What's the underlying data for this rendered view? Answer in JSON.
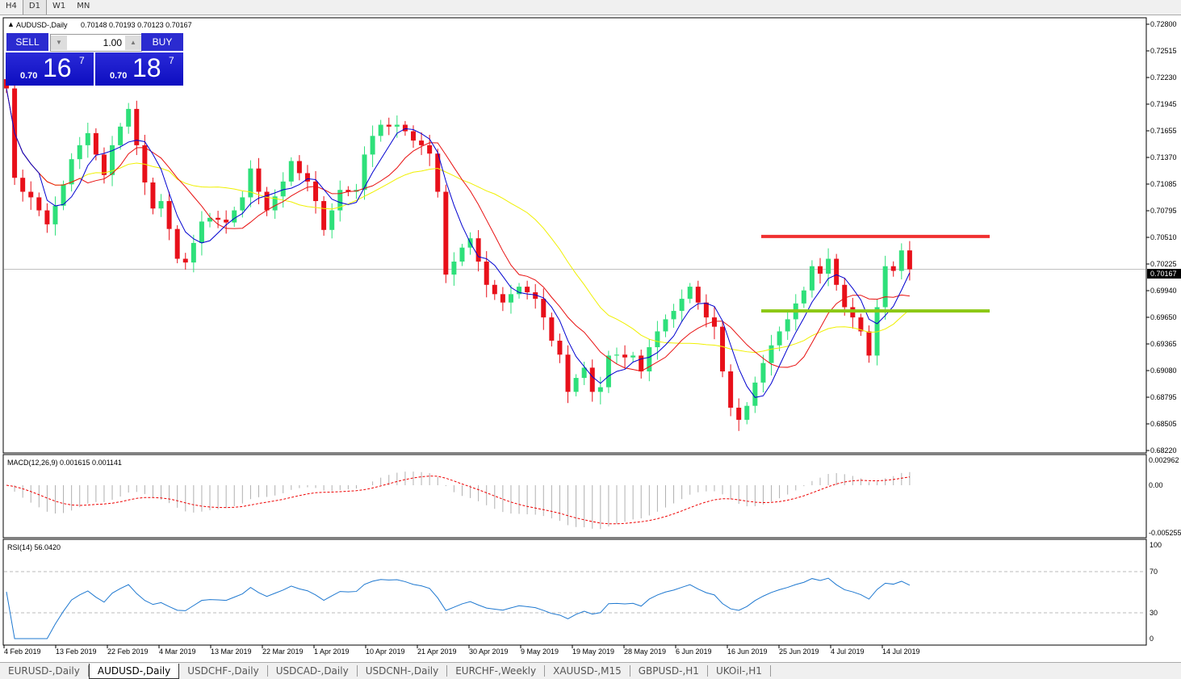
{
  "timeframe_tabs": [
    "H4",
    "D1",
    "W1",
    "MN"
  ],
  "active_timeframe": "D1",
  "chart_header": {
    "symbol": "AUDUSD-,Daily",
    "ohlc": "0.70148 0.70193 0.70123 0.70167"
  },
  "one_click": {
    "sell_label": "SELL",
    "buy_label": "BUY",
    "lot": "1.00",
    "sell_prefix": "0.70",
    "sell_big": "16",
    "sell_sup": "7",
    "buy_prefix": "0.70",
    "buy_big": "18",
    "buy_sup": "7"
  },
  "price_axis": [
    "0.72800",
    "0.72515",
    "0.72230",
    "0.71945",
    "0.71655",
    "0.71370",
    "0.71085",
    "0.70795",
    "0.70510",
    "0.70225",
    "0.69940",
    "0.69650",
    "0.69365",
    "0.69080",
    "0.68795",
    "0.68505",
    "0.68220"
  ],
  "current_price": "0.70167",
  "macd": {
    "label": "MACD(12,26,9) 0.001615 0.001141",
    "axis": [
      "0.002962",
      "0.00",
      "-0.005255"
    ]
  },
  "rsi": {
    "label": "RSI(14) 56.0420",
    "axis": [
      "100",
      "70",
      "30",
      "0"
    ]
  },
  "time_axis": [
    "4 Feb 2019",
    "13 Feb 2019",
    "22 Feb 2019",
    "4 Mar 2019",
    "13 Mar 2019",
    "22 Mar 2019",
    "1 Apr 2019",
    "10 Apr 2019",
    "21 Apr 2019",
    "30 Apr 2019",
    "9 May 2019",
    "19 May 2019",
    "28 May 2019",
    "6 Jun 2019",
    "16 Jun 2019",
    "25 Jun 2019",
    "4 Jul 2019",
    "14 Jul 2019"
  ],
  "symbol_tabs": [
    "EURUSD-,Daily",
    "AUDUSD-,Daily",
    "USDCHF-,Daily",
    "USDCAD-,Daily",
    "USDCNH-,Daily",
    "EURCHF-,Weekly",
    "XAUUSD-,M15",
    "GBPUSD-,H1",
    "UKOil-,H1"
  ],
  "active_symbol_tab": "AUDUSD-,Daily",
  "colors": {
    "bull": "#2ee07a",
    "bear": "#e8101a",
    "ma_fast": "#0000d0",
    "ma_mid": "#e81010",
    "ma_slow": "#f0f000",
    "resistance": "#f03030",
    "support": "#8cc814"
  },
  "chart_data": {
    "type": "candlestick",
    "price_range": [
      0.6822,
      0.728
    ],
    "horizontal_lines": [
      {
        "price": 0.7052,
        "color": "#f03030"
      },
      {
        "price": 0.6972,
        "color": "#8cc814"
      }
    ],
    "closes": [
      0.7211,
      0.7115,
      0.71,
      0.7094,
      0.708,
      0.7065,
      0.7085,
      0.7108,
      0.7135,
      0.715,
      0.7163,
      0.714,
      0.7118,
      0.715,
      0.717,
      0.7189,
      0.715,
      0.711,
      0.7082,
      0.709,
      0.706,
      0.7028,
      0.7024,
      0.7045,
      0.7068,
      0.7072,
      0.707,
      0.7067,
      0.708,
      0.7094,
      0.7125,
      0.71,
      0.708,
      0.7095,
      0.7111,
      0.7133,
      0.712,
      0.7111,
      0.709,
      0.7059,
      0.708,
      0.7102,
      0.71,
      0.7102,
      0.714,
      0.716,
      0.7172,
      0.717,
      0.7172,
      0.7165,
      0.7155,
      0.715,
      0.7141,
      0.71,
      0.7011,
      0.7025,
      0.704,
      0.705,
      0.7025,
      0.7,
      0.699,
      0.6981,
      0.699,
      0.6998,
      0.6992,
      0.6985,
      0.6965,
      0.694,
      0.6925,
      0.6885,
      0.69,
      0.6911,
      0.6885,
      0.689,
      0.6924,
      0.6925,
      0.6922,
      0.6924,
      0.6907,
      0.6933,
      0.695,
      0.6963,
      0.6972,
      0.6985,
      0.6998,
      0.6981,
      0.6965,
      0.6955,
      0.6907,
      0.6868,
      0.6855,
      0.687,
      0.6895,
      0.6916,
      0.6935,
      0.695,
      0.6963,
      0.698,
      0.6994,
      0.702,
      0.7012,
      0.7028,
      0.7,
      0.6976,
      0.6965,
      0.695,
      0.6924,
      0.6976,
      0.702,
      0.7015,
      0.7037,
      0.70167
    ]
  }
}
